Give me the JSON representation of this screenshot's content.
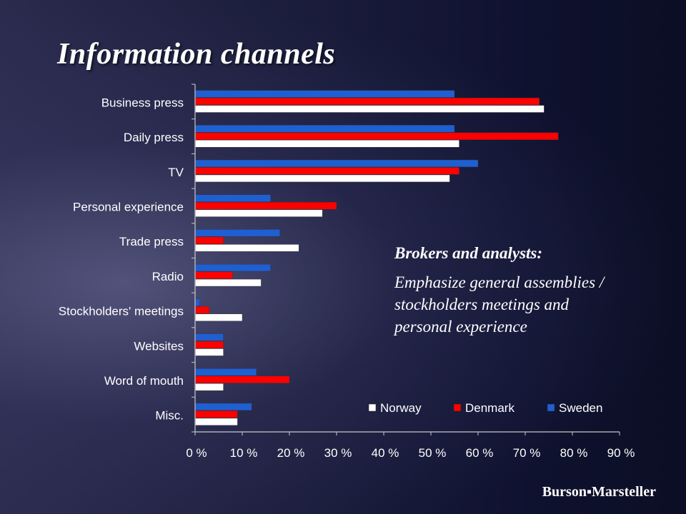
{
  "slide": {
    "title": "Information channels",
    "note": {
      "heading": "Brokers and analysts:",
      "body": "Emphasize general assemblies / stockholders meetings and personal experience"
    },
    "brand": "Burson▪Marsteller"
  },
  "chart_data": {
    "type": "bar",
    "orientation": "horizontal",
    "categories": [
      "Business press",
      "Daily press",
      "TV",
      "Personal experience",
      "Trade press",
      "Radio",
      "Stockholders' meetings",
      "Websites",
      "Word of mouth",
      "Misc."
    ],
    "series": [
      {
        "name": "Sweden",
        "color": "#1f5fd1",
        "values": [
          55,
          55,
          60,
          16,
          18,
          16,
          1,
          6,
          13,
          12
        ]
      },
      {
        "name": "Denmark",
        "color": "#ff0000",
        "values": [
          73,
          77,
          56,
          30,
          6,
          8,
          3,
          6,
          20,
          9
        ]
      },
      {
        "name": "Norway",
        "color": "#ffffff",
        "values": [
          74,
          56,
          54,
          27,
          22,
          14,
          10,
          6,
          6,
          9
        ]
      }
    ],
    "legend_order": [
      "Norway",
      "Denmark",
      "Sweden"
    ],
    "legend_position": "bottom-right",
    "xlim": [
      0,
      90
    ],
    "xticks": [
      "0 %",
      "10 %",
      "20 %",
      "30 %",
      "40 %",
      "50 %",
      "60 %",
      "70 %",
      "80 %",
      "90 %"
    ],
    "xlabel": "",
    "ylabel": ""
  }
}
